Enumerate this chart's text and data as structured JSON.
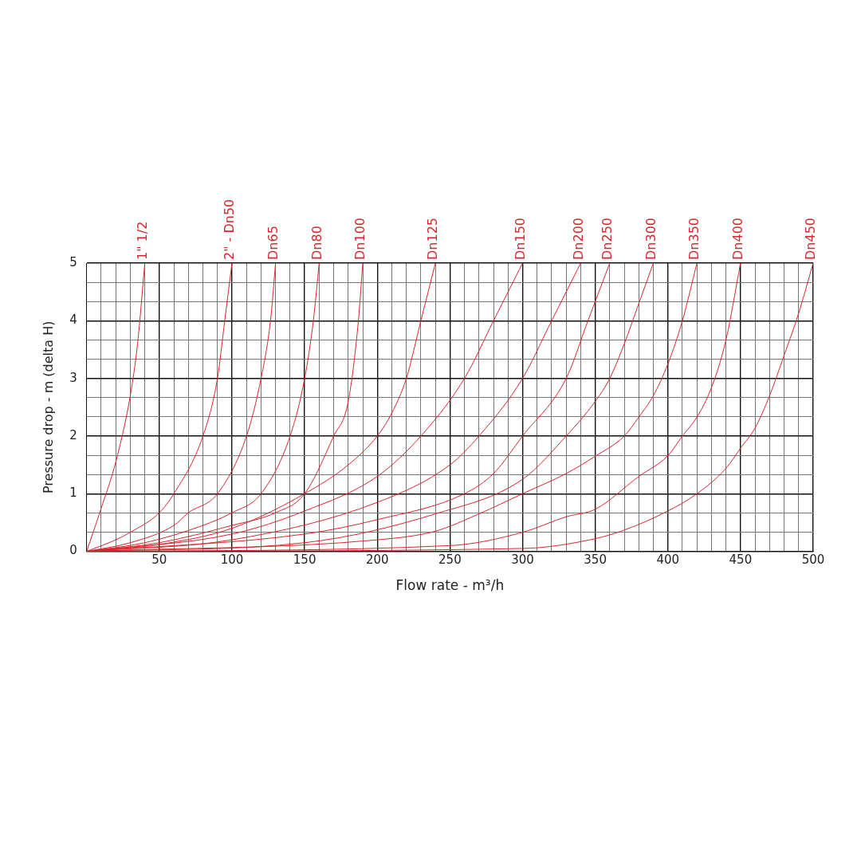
{
  "chart_data": {
    "type": "line",
    "xlabel": "Flow rate - m³/h",
    "ylabel": "Pressure drop - m (delta H)",
    "xlim": [
      0,
      500
    ],
    "xticks": [
      {
        "value": 0,
        "label": null
      },
      {
        "value": 10,
        "label": null
      },
      {
        "value": 20,
        "label": null
      },
      {
        "value": 30,
        "label": null
      },
      {
        "value": 40,
        "label": null
      },
      50,
      {
        "value": 60,
        "label": null
      },
      {
        "value": 70,
        "label": null
      },
      {
        "value": 80,
        "label": null
      },
      {
        "value": 90,
        "label": null
      },
      100,
      {
        "value": 110,
        "label": null
      },
      {
        "value": 120,
        "label": null
      },
      {
        "value": 130,
        "label": null
      },
      {
        "value": 140,
        "label": null
      },
      150,
      {
        "value": 160,
        "label": null
      },
      {
        "value": 170,
        "label": null
      },
      {
        "value": 180,
        "label": null
      },
      {
        "value": 190,
        "label": null
      },
      200,
      {
        "value": 210,
        "label": null
      },
      {
        "value": 220,
        "label": null
      },
      {
        "value": 230,
        "label": null
      },
      {
        "value": 240,
        "label": null
      },
      250,
      {
        "value": 260,
        "label": null
      },
      {
        "value": 270,
        "label": null
      },
      {
        "value": 280,
        "label": null
      },
      {
        "value": 290,
        "label": null
      },
      300,
      {
        "value": 310,
        "label": null
      },
      {
        "value": 320,
        "label": null
      },
      {
        "value": 330,
        "label": null
      },
      {
        "value": 340,
        "label": null
      },
      350,
      {
        "value": 360,
        "label": null
      },
      {
        "value": 370,
        "label": null
      },
      {
        "value": 380,
        "label": null
      },
      {
        "value": 390,
        "label": null
      },
      400,
      {
        "value": 410,
        "label": null
      },
      {
        "value": 420,
        "label": null
      },
      {
        "value": 430,
        "label": null
      },
      {
        "value": 440,
        "label": null
      },
      450,
      {
        "value": 460,
        "label": null
      },
      {
        "value": 470,
        "label": null
      },
      {
        "value": 480,
        "label": null
      },
      {
        "value": 490,
        "label": null
      },
      500
    ],
    "ylim": [
      0,
      5
    ],
    "yticks": [
      0,
      {
        "value": 0.333,
        "label": null
      },
      {
        "value": 0.667,
        "label": null
      },
      1,
      {
        "value": 1.333,
        "label": null
      },
      {
        "value": 1.667,
        "label": null
      },
      2,
      {
        "value": 2.333,
        "label": null
      },
      {
        "value": 2.667,
        "label": null
      },
      3,
      {
        "value": 3.333,
        "label": null
      },
      {
        "value": 3.667,
        "label": null
      },
      4,
      {
        "value": 4.333,
        "label": null
      },
      {
        "value": 4.667,
        "label": null
      },
      5
    ],
    "grid": true,
    "legend": false,
    "marker": "none",
    "line_style": "solid",
    "series": [
      {
        "name": "1\" 1/2",
        "color": "#d9262c",
        "x": [
          0,
          10,
          20,
          30,
          35,
          40
        ],
        "values": [
          0,
          0.75,
          1.55,
          2.7,
          3.6,
          5
        ]
      },
      {
        "name": "2\" - Dn50",
        "color": "#d9262c",
        "x": [
          0,
          20,
          30,
          50,
          60,
          80,
          90,
          95,
          100
        ],
        "values": [
          0,
          0.2,
          0.33,
          0.67,
          1,
          2,
          3,
          4,
          5
        ]
      },
      {
        "name": "Dn65",
        "color": "#d9262c",
        "x": [
          0,
          30,
          60,
          70,
          90,
          110,
          120,
          126.5,
          130
        ],
        "values": [
          0,
          0.15,
          0.45,
          0.67,
          1,
          2,
          3,
          4,
          5
        ]
      },
      {
        "name": "Dn80",
        "color": "#d9262c",
        "x": [
          0,
          40,
          80,
          100,
          120,
          140,
          150,
          156,
          160
        ],
        "values": [
          0,
          0.15,
          0.45,
          0.67,
          1,
          2,
          3,
          4,
          5
        ]
      },
      {
        "name": "Dn100",
        "color": "#d9262c",
        "x": [
          0,
          50,
          100,
          130,
          150,
          170,
          180,
          187,
          190
        ],
        "values": [
          0,
          0.15,
          0.45,
          0.67,
          1,
          2,
          2.6,
          4,
          5
        ]
      },
      {
        "name": "Dn125",
        "color": "#d9262c",
        "x": [
          0,
          50,
          100,
          150,
          180,
          200,
          210,
          220,
          230,
          240
        ],
        "values": [
          0,
          0.12,
          0.4,
          1,
          1.5,
          2,
          2.4,
          3,
          4,
          5
        ]
      },
      {
        "name": "Dn150",
        "color": "#d9262c",
        "x": [
          0,
          100,
          150,
          200,
          230,
          260,
          280,
          300
        ],
        "values": [
          0,
          0.3,
          0.7,
          1.3,
          2,
          3,
          4,
          5
        ]
      },
      {
        "name": "Dn200",
        "color": "#d9262c",
        "x": [
          0,
          100,
          200,
          250,
          270,
          300,
          320,
          340
        ],
        "values": [
          0,
          0.2,
          0.85,
          1.5,
          2,
          3,
          4,
          5
        ]
      },
      {
        "name": "Dn250",
        "color": "#d9262c",
        "x": [
          0,
          150,
          200,
          260,
          280,
          300,
          330,
          345,
          360
        ],
        "values": [
          0,
          0.3,
          0.55,
          1,
          1.35,
          2,
          3,
          4,
          5
        ]
      },
      {
        "name": "Dn300",
        "color": "#d9262c",
        "x": [
          0,
          150,
          240,
          300,
          330,
          350,
          360,
          370,
          380,
          390
        ],
        "values": [
          0,
          0.15,
          0.65,
          1.25,
          2,
          2.6,
          3,
          3.6,
          4.3,
          5
        ]
      },
      {
        "name": "Dn350",
        "color": "#d9262c",
        "x": [
          0,
          200,
          240,
          270,
          300,
          330,
          350,
          370,
          380,
          390,
          400,
          410,
          420
        ],
        "values": [
          0,
          0.2,
          0.35,
          0.65,
          1,
          1.35,
          1.65,
          2,
          2.33,
          2.7,
          3.25,
          4,
          5
        ]
      },
      {
        "name": "Dn400",
        "color": "#d9262c",
        "x": [
          0,
          250,
          300,
          330,
          350,
          380,
          400,
          410,
          420,
          430,
          440,
          450
        ],
        "values": [
          0,
          0.1,
          0.33,
          0.6,
          0.73,
          1.3,
          1.66,
          2,
          2.33,
          2.84,
          3.67,
          5
        ]
      },
      {
        "name": "Dn450",
        "color": "#d9262c",
        "x": [
          0,
          300,
          350,
          370,
          400,
          420,
          440,
          450,
          460,
          470,
          480,
          490,
          500
        ],
        "values": [
          0,
          0.05,
          0.22,
          0.37,
          0.7,
          1,
          1.44,
          1.79,
          2.14,
          2.7,
          3.4,
          4.13,
          5
        ]
      }
    ]
  }
}
